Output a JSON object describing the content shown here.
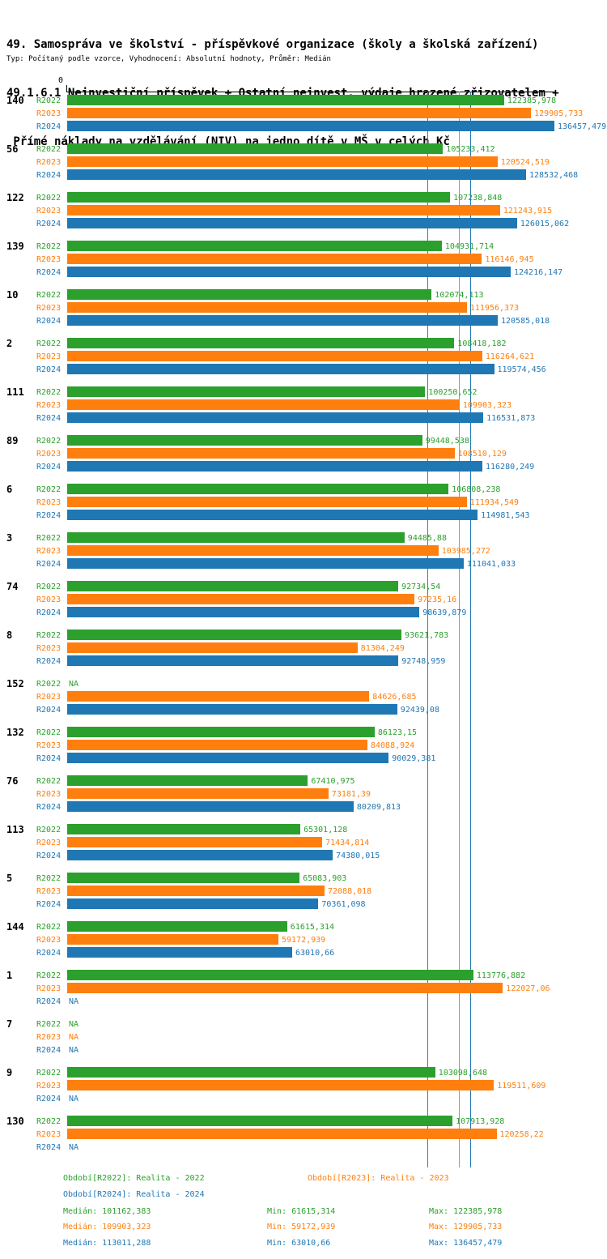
{
  "title": {
    "line1": "49. Samospráva ve školství - příspěvkové organizace (školy a školská zařízení)",
    "line2": "49.1.6.1 Neinvestiční příspěvek + Ostatní neinvest. výdaje hrazené zřizovatelem +",
    "line3": " Přímé náklady na vzdělávání (NIV) na jedno dítě v MŠ v celých Kč",
    "subtitle": "Typ: Počítaný podle vzorce, Vyhodnocení: Absolutní hodnoty, Průměr: Medián"
  },
  "axis": {
    "zero": "0"
  },
  "colors": {
    "series": [
      "#2ca02c",
      "#ff7f0e",
      "#1f77b4"
    ],
    "axis": "#000000"
  },
  "chart_data": {
    "type": "bar",
    "orientation": "horizontal",
    "unit": "Kč",
    "series_labels": [
      "R2022",
      "R2023",
      "R2024"
    ],
    "xmax_value": 136457.479,
    "xlim": [
      0,
      136457.479
    ],
    "medians": [
      101162.383,
      109903.323,
      113011.288
    ],
    "groups": [
      {
        "id": "140",
        "values": [
          "122385,978",
          "129905,733",
          "136457,479"
        ]
      },
      {
        "id": "56",
        "values": [
          "105233,412",
          "120524,519",
          "128532,468"
        ]
      },
      {
        "id": "122",
        "values": [
          "107238,848",
          "121243,915",
          "126015,062"
        ]
      },
      {
        "id": "139",
        "values": [
          "104931,714",
          "116146,945",
          "124216,147"
        ]
      },
      {
        "id": "10",
        "values": [
          "102074,113",
          "111956,373",
          "120585,018"
        ]
      },
      {
        "id": "2",
        "values": [
          "108418,182",
          "116264,621",
          "119574,456"
        ]
      },
      {
        "id": "111",
        "values": [
          "100250,652",
          "109903,323",
          "116531,873"
        ]
      },
      {
        "id": "89",
        "values": [
          "99448,538",
          "108510,129",
          "116280,249"
        ]
      },
      {
        "id": "6",
        "values": [
          "106808,238",
          "111934,549",
          "114981,543"
        ]
      },
      {
        "id": "3",
        "values": [
          "94485,88",
          "103985,272",
          "111041,033"
        ]
      },
      {
        "id": "74",
        "values": [
          "92734,54",
          "97235,16",
          "98639,879"
        ]
      },
      {
        "id": "8",
        "values": [
          "93621,783",
          "81304,249",
          "92748,959"
        ]
      },
      {
        "id": "152",
        "values": [
          "NA",
          "84626,685",
          "92439,08"
        ]
      },
      {
        "id": "132",
        "values": [
          "86123,15",
          "84088,924",
          "90029,381"
        ]
      },
      {
        "id": "76",
        "values": [
          "67410,975",
          "73181,39",
          "80209,813"
        ]
      },
      {
        "id": "113",
        "values": [
          "65301,128",
          "71434,814",
          "74380,015"
        ]
      },
      {
        "id": "5",
        "values": [
          "65083,903",
          "72088,018",
          "70361,098"
        ]
      },
      {
        "id": "144",
        "values": [
          "61615,314",
          "59172,939",
          "63010,66"
        ]
      },
      {
        "id": "1",
        "values": [
          "113776,882",
          "122027,06",
          "NA"
        ]
      },
      {
        "id": "7",
        "values": [
          "NA",
          "NA",
          "NA"
        ]
      },
      {
        "id": "9",
        "values": [
          "103098,648",
          "119511,609",
          "NA"
        ]
      },
      {
        "id": "130",
        "values": [
          "107913,928",
          "120258,22",
          "NA"
        ]
      }
    ]
  },
  "legend": {
    "r2022": "Období[R2022]: Realita - 2022",
    "r2023": "Období[R2023]: Realita - 2023",
    "r2024": "Období[R2024]: Realita - 2024"
  },
  "stats": {
    "r2022": {
      "median": "Medián: 101162,383",
      "min": "Min: 61615,314",
      "max": "Max: 122385,978"
    },
    "r2023": {
      "median": "Medián: 109903,323",
      "min": "Min: 59172,939",
      "max": "Max: 129905,733"
    },
    "r2024": {
      "median": "Medián: 113011,288",
      "min": "Min: 63010,66",
      "max": "Max: 136457,479"
    }
  }
}
